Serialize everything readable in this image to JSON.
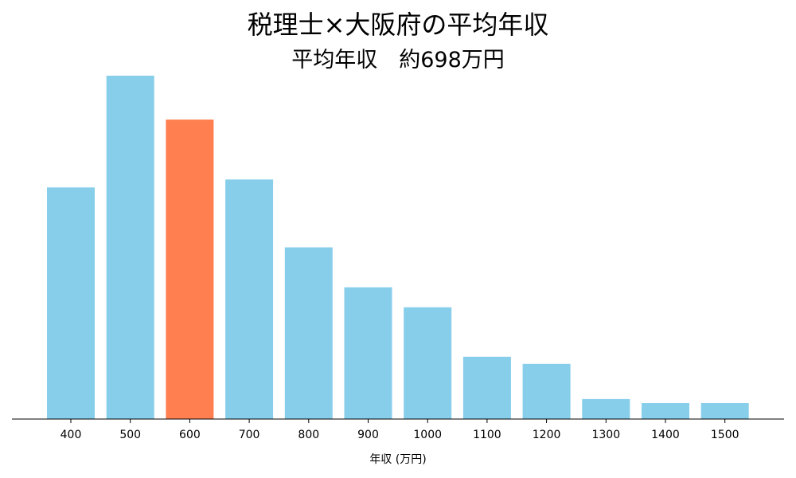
{
  "chart_data": {
    "type": "bar",
    "title": "税理士×大阪府の平均年収",
    "subtitle": "平均年収　約698万円",
    "xlabel": "年収 (万円)",
    "ylabel": "",
    "categories": [
      "400",
      "500",
      "600",
      "700",
      "800",
      "900",
      "1000",
      "1100",
      "1200",
      "1300",
      "1400",
      "1500"
    ],
    "values": [
      29,
      43,
      37.5,
      30,
      21.5,
      16.5,
      14,
      7.8,
      6.9,
      2.5,
      2,
      2
    ],
    "highlight_category": "600",
    "colors": {
      "bar": "#87ceeb",
      "highlight": "#ff7f50",
      "axis": "#000000"
    },
    "ylim": [
      0,
      45
    ],
    "grid": false,
    "legend": "none"
  }
}
